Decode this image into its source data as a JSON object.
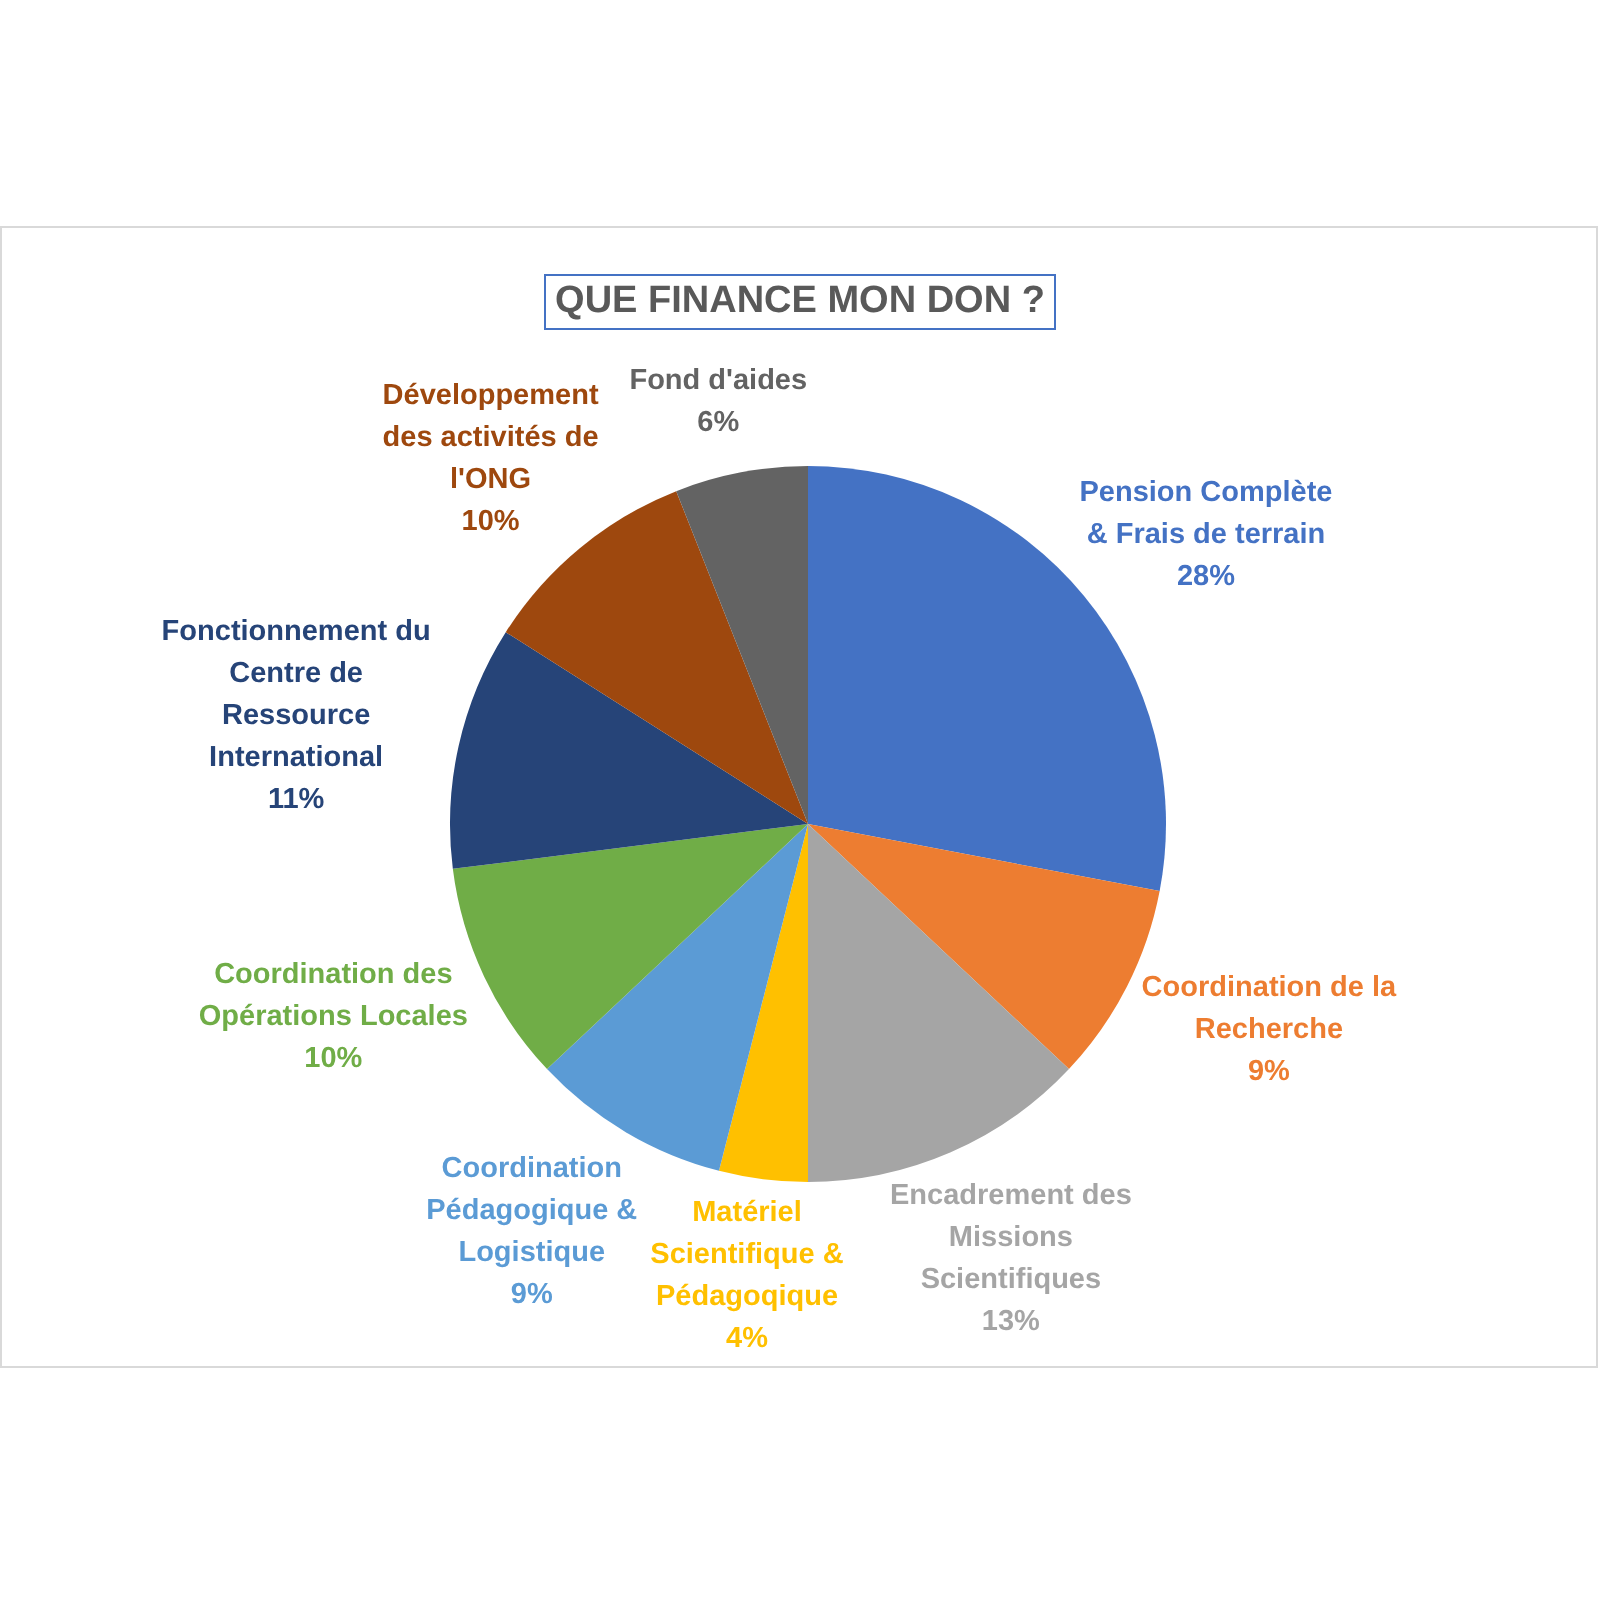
{
  "chart_data": {
    "type": "pie",
    "title": "QUE FINANCE MON DON ?",
    "categories": [
      "Pension Complète & Frais de terrain",
      "Coordination de la Recherche",
      "Encadrement des Missions Scientifiques",
      "Matériel Scientifique & Pédagoqique",
      "Coordination Pédagogique & Logistique",
      "Coordination des Opérations Locales",
      "Fonctionnement du Centre de Ressource International",
      "Développement des activités de l'ONG",
      "Fond d'aides"
    ],
    "values": [
      28,
      9,
      13,
      4,
      9,
      10,
      11,
      10,
      6
    ],
    "colors": [
      "#4472c4",
      "#ed7d31",
      "#a5a5a5",
      "#ffc000",
      "#5b9bd5",
      "#70ad47",
      "#264478",
      "#9e480e",
      "#636363"
    ],
    "value_labels": [
      "28%",
      "9%",
      "13%",
      "4%",
      "9%",
      "10%",
      "11%",
      "10%",
      "6%"
    ]
  }
}
